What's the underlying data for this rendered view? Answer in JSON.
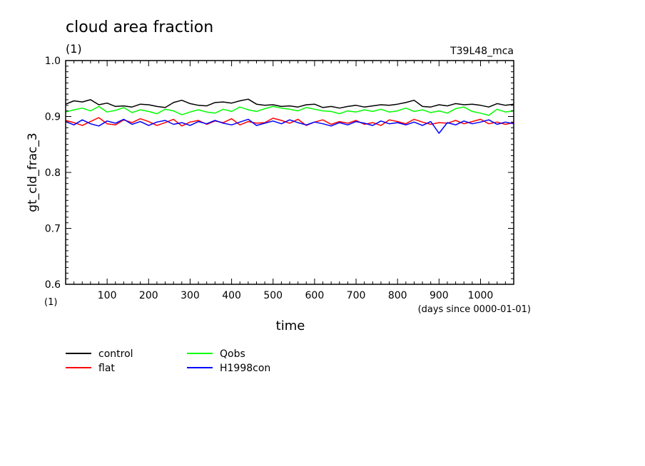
{
  "chart_data": {
    "type": "line",
    "title": "cloud area fraction",
    "subtitle": "(1)",
    "top_right_label": "T39L48_mca",
    "ylabel": "gt_cld_frac_3",
    "ylabel_unit": "(1)",
    "xlabel": "time",
    "xlabel_unit": "(days since 0000-01-01)",
    "xlim": [
      0,
      1080
    ],
    "ylim": [
      0.6,
      1.0
    ],
    "x_ticks": [
      100,
      200,
      300,
      400,
      500,
      600,
      700,
      800,
      900,
      1000
    ],
    "y_ticks": [
      0.6,
      0.7,
      0.8,
      0.9,
      1.0
    ],
    "y_tick_labels": [
      "0.6",
      "0.7",
      "0.8",
      "0.9",
      "1.0"
    ],
    "grid": false,
    "legend_position": "bottom-left",
    "series": [
      {
        "name": "control",
        "color": "#000000",
        "x": [
          0,
          20,
          40,
          60,
          80,
          100,
          120,
          140,
          160,
          180,
          200,
          220,
          240,
          260,
          280,
          300,
          320,
          340,
          360,
          380,
          400,
          420,
          440,
          460,
          480,
          500,
          520,
          540,
          560,
          580,
          600,
          620,
          640,
          660,
          680,
          700,
          720,
          740,
          760,
          780,
          800,
          820,
          840,
          860,
          880,
          900,
          920,
          940,
          960,
          980,
          1000,
          1020,
          1040,
          1060,
          1080
        ],
        "values": [
          0.922,
          0.928,
          0.926,
          0.93,
          0.921,
          0.924,
          0.918,
          0.919,
          0.917,
          0.922,
          0.921,
          0.918,
          0.916,
          0.925,
          0.929,
          0.923,
          0.92,
          0.919,
          0.925,
          0.926,
          0.924,
          0.928,
          0.931,
          0.922,
          0.92,
          0.921,
          0.918,
          0.919,
          0.917,
          0.921,
          0.922,
          0.916,
          0.918,
          0.915,
          0.918,
          0.92,
          0.917,
          0.919,
          0.921,
          0.92,
          0.922,
          0.925,
          0.929,
          0.918,
          0.917,
          0.921,
          0.919,
          0.923,
          0.921,
          0.922,
          0.92,
          0.917,
          0.923,
          0.92,
          0.922
        ]
      },
      {
        "name": "flat",
        "color": "#ff0000",
        "x": [
          0,
          20,
          40,
          60,
          80,
          100,
          120,
          140,
          160,
          180,
          200,
          220,
          240,
          260,
          280,
          300,
          320,
          340,
          360,
          380,
          400,
          420,
          440,
          460,
          480,
          500,
          520,
          540,
          560,
          580,
          600,
          620,
          640,
          660,
          680,
          700,
          720,
          740,
          760,
          780,
          800,
          820,
          840,
          860,
          880,
          900,
          920,
          940,
          960,
          980,
          1000,
          1020,
          1040,
          1060,
          1080
        ],
        "values": [
          0.893,
          0.889,
          0.884,
          0.891,
          0.898,
          0.887,
          0.885,
          0.894,
          0.889,
          0.896,
          0.891,
          0.884,
          0.889,
          0.895,
          0.883,
          0.89,
          0.893,
          0.886,
          0.892,
          0.889,
          0.896,
          0.885,
          0.891,
          0.888,
          0.889,
          0.897,
          0.893,
          0.888,
          0.895,
          0.884,
          0.89,
          0.894,
          0.886,
          0.891,
          0.888,
          0.893,
          0.886,
          0.889,
          0.884,
          0.894,
          0.891,
          0.887,
          0.895,
          0.89,
          0.886,
          0.889,
          0.888,
          0.893,
          0.887,
          0.891,
          0.895,
          0.887,
          0.89,
          0.886,
          0.889
        ]
      },
      {
        "name": "Qobs",
        "color": "#00ff00",
        "x": [
          0,
          20,
          40,
          60,
          80,
          100,
          120,
          140,
          160,
          180,
          200,
          220,
          240,
          260,
          280,
          300,
          320,
          340,
          360,
          380,
          400,
          420,
          440,
          460,
          480,
          500,
          520,
          540,
          560,
          580,
          600,
          620,
          640,
          660,
          680,
          700,
          720,
          740,
          760,
          780,
          800,
          820,
          840,
          860,
          880,
          900,
          920,
          940,
          960,
          980,
          1000,
          1020,
          1040,
          1060,
          1080
        ],
        "values": [
          0.908,
          0.912,
          0.915,
          0.91,
          0.918,
          0.908,
          0.911,
          0.916,
          0.907,
          0.912,
          0.909,
          0.905,
          0.913,
          0.91,
          0.903,
          0.908,
          0.912,
          0.908,
          0.906,
          0.913,
          0.909,
          0.917,
          0.912,
          0.909,
          0.914,
          0.918,
          0.915,
          0.913,
          0.91,
          0.916,
          0.913,
          0.91,
          0.909,
          0.905,
          0.91,
          0.908,
          0.912,
          0.909,
          0.913,
          0.908,
          0.91,
          0.915,
          0.909,
          0.912,
          0.907,
          0.91,
          0.906,
          0.914,
          0.917,
          0.909,
          0.906,
          0.902,
          0.913,
          0.908,
          0.91
        ]
      },
      {
        "name": "H1998con",
        "color": "#0000ff",
        "x": [
          0,
          20,
          40,
          60,
          80,
          100,
          120,
          140,
          160,
          180,
          200,
          220,
          240,
          260,
          280,
          300,
          320,
          340,
          360,
          380,
          400,
          420,
          440,
          460,
          480,
          500,
          520,
          540,
          560,
          580,
          600,
          620,
          640,
          660,
          680,
          700,
          720,
          740,
          760,
          780,
          800,
          820,
          840,
          860,
          880,
          900,
          920,
          940,
          960,
          980,
          1000,
          1020,
          1040,
          1060,
          1080
        ],
        "values": [
          0.891,
          0.885,
          0.894,
          0.887,
          0.883,
          0.892,
          0.888,
          0.895,
          0.886,
          0.891,
          0.884,
          0.89,
          0.893,
          0.886,
          0.889,
          0.884,
          0.891,
          0.887,
          0.893,
          0.888,
          0.885,
          0.89,
          0.895,
          0.884,
          0.888,
          0.892,
          0.887,
          0.894,
          0.889,
          0.885,
          0.89,
          0.887,
          0.883,
          0.889,
          0.885,
          0.891,
          0.888,
          0.884,
          0.892,
          0.887,
          0.889,
          0.885,
          0.89,
          0.884,
          0.891,
          0.87,
          0.889,
          0.885,
          0.892,
          0.887,
          0.89,
          0.894,
          0.886,
          0.89,
          0.887
        ]
      }
    ]
  }
}
